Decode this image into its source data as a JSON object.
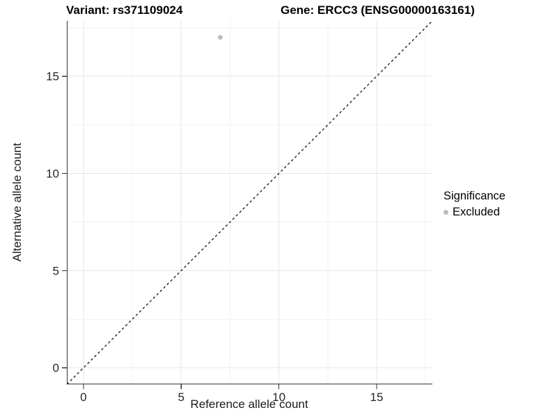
{
  "window": {
    "background": "#ffffff"
  },
  "header": {
    "variant_title": "Variant: rs371109024",
    "gene_title": "Gene: ERCC3 (ENSG00000163161)"
  },
  "axes": {
    "x": {
      "title": "Reference allele count"
    },
    "y": {
      "title": "Alternative allele count"
    }
  },
  "legend": {
    "title": "Significance",
    "items": [
      {
        "label": "Excluded",
        "color": "#bcbcbc",
        "marker": "circle"
      }
    ]
  },
  "colors": {
    "axis_line": "#333333",
    "tick_label": "#262626",
    "grid_major": "#e5e5e5",
    "grid_minor": "#f1f1f1",
    "point": "#bcbcbc",
    "reference_line": "#111111"
  },
  "chart_data": {
    "type": "scatter",
    "title": "Variant: rs371109024    Gene: ERCC3 (ENSG00000163161)",
    "xlabel": "Reference allele count",
    "ylabel": "Alternative allele count",
    "xlim": [
      -0.85,
      17.85
    ],
    "ylim": [
      -0.85,
      17.85
    ],
    "x_ticks": [
      0,
      5,
      10,
      15
    ],
    "y_ticks": [
      0,
      5,
      10,
      15
    ],
    "x_minor_ticks": [
      2.5,
      7.5,
      12.5,
      17.5
    ],
    "y_minor_ticks": [
      2.5,
      7.5,
      12.5,
      17.5
    ],
    "grid": "major+minor",
    "legend_position": "right",
    "series": [
      {
        "name": "Excluded",
        "color": "#bcbcbc",
        "points": [
          {
            "x": 7,
            "y": 17
          }
        ]
      }
    ],
    "reference_line": {
      "type": "identity",
      "style": "dashed",
      "color": "#111111"
    }
  }
}
